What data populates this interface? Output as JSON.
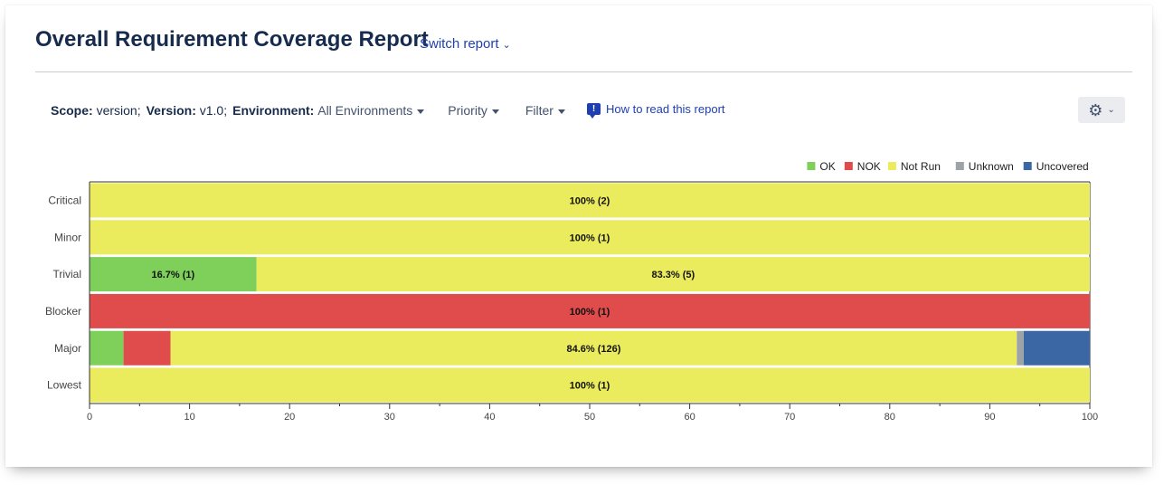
{
  "header": {
    "title": "Overall Requirement Coverage Report",
    "switch_report": "Switch report"
  },
  "toolbar": {
    "scope_label": "Scope:",
    "scope_value": "version;",
    "version_label": "Version:",
    "version_value": "v1.0;",
    "environment_label": "Environment:",
    "environment_value": "All Environments",
    "priority": "Priority",
    "filter": "Filter",
    "help_link": "How to read this report",
    "gear_icon": "gear-icon"
  },
  "colors": {
    "OK": "#7ed05b",
    "NOK": "#e04b4b",
    "Not Run": "#ebeb5e",
    "Unknown": "#9ea3a8",
    "Uncovered": "#3b67a5"
  },
  "chart_data": {
    "type": "bar",
    "orientation": "horizontal",
    "stacked": true,
    "xlim": [
      0,
      100
    ],
    "xticks": [
      0,
      10,
      20,
      30,
      40,
      50,
      60,
      70,
      80,
      90,
      100
    ],
    "legend": [
      "OK",
      "NOK",
      "Not Run",
      "Unknown",
      "Uncovered"
    ],
    "legend_position": "top-right",
    "categories": [
      "Critical",
      "Minor",
      "Trivial",
      "Blocker",
      "Major",
      "Lowest"
    ],
    "series": [
      {
        "name": "OK",
        "values": [
          0,
          0,
          16.7,
          0,
          3.4,
          0
        ],
        "labels": [
          "",
          "",
          "16.7% (1)",
          "",
          "",
          ""
        ]
      },
      {
        "name": "NOK",
        "values": [
          0,
          0,
          0,
          100,
          4.7,
          0
        ],
        "labels": [
          "",
          "",
          "",
          "100% (1)",
          "",
          ""
        ]
      },
      {
        "name": "Not Run",
        "values": [
          100,
          100,
          83.3,
          0,
          84.6,
          100
        ],
        "labels": [
          "100% (2)",
          "100% (1)",
          "83.3% (5)",
          "",
          "84.6% (126)",
          "100% (1)"
        ]
      },
      {
        "name": "Unknown",
        "values": [
          0,
          0,
          0,
          0,
          0.7,
          0
        ],
        "labels": [
          "",
          "",
          "",
          "",
          "",
          ""
        ]
      },
      {
        "name": "Uncovered",
        "values": [
          0,
          0,
          0,
          0,
          6.6,
          0
        ],
        "labels": [
          "",
          "",
          "",
          "",
          "",
          ""
        ]
      }
    ]
  }
}
